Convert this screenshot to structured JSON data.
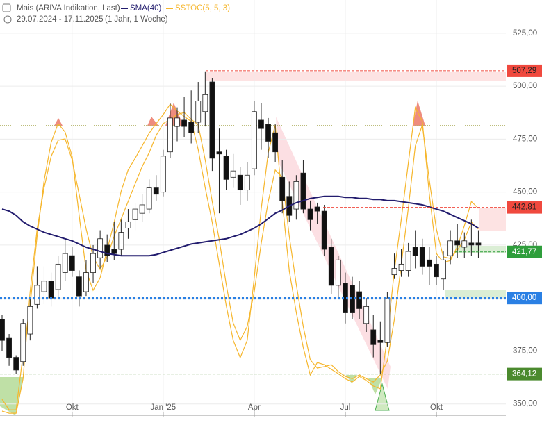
{
  "header": {
    "period": "29.07.2024 - 17.11.2025",
    "interval": "(1 Jahr, 1 Woche)"
  },
  "chart_data": {
    "type": "candlestick",
    "categories": [
      null,
      null,
      null,
      null,
      null,
      null,
      null,
      null,
      null,
      null,
      "Okt",
      null,
      null,
      null,
      null,
      null,
      null,
      null,
      null,
      null,
      null,
      null,
      null,
      "Jan '25",
      null,
      null,
      null,
      null,
      null,
      null,
      null,
      null,
      null,
      null,
      null,
      null,
      "Apr",
      null,
      null,
      null,
      null,
      null,
      null,
      null,
      null,
      null,
      null,
      null,
      null,
      "Jul",
      null,
      null,
      null,
      null,
      null,
      null,
      null,
      null,
      null,
      null,
      null,
      null,
      "Okt",
      null,
      null,
      null,
      null,
      null,
      null
    ],
    "series": [
      {
        "name": "Mais (ARIVA Indikation, Last)",
        "up_color": "#ffffff",
        "down_color": "#111111",
        "open": [
          390,
          381,
          372,
          370,
          383,
          397,
          403,
          408,
          404,
          412,
          420,
          410,
          403,
          412,
          419,
          425,
          423,
          423,
          433,
          437,
          440,
          442,
          452,
          450,
          469,
          481,
          484,
          483,
          483,
          488,
          502,
          469,
          467,
          457,
          458,
          451,
          461,
          484,
          482,
          478,
          457,
          448,
          442,
          459,
          442,
          443,
          441,
          424,
          406,
          407,
          406,
          403,
          388,
          385,
          380,
          379,
          411,
          413,
          413,
          424,
          424,
          418,
          416,
          409,
          420,
          427,
          424,
          426,
          426
        ],
        "high": [
          392,
          383,
          373,
          390,
          400,
          415,
          415,
          412,
          420,
          428,
          424,
          413,
          418,
          425,
          432,
          430,
          436,
          437,
          442,
          445,
          449,
          456,
          458,
          470,
          492,
          490,
          495,
          498,
          502,
          507,
          504,
          480,
          470,
          468,
          462,
          464,
          493,
          492,
          485,
          482,
          465,
          455,
          458,
          465,
          446,
          445,
          444,
          428,
          420,
          412,
          410,
          408,
          400,
          392,
          389,
          403,
          421,
          423,
          426,
          432,
          428,
          424,
          420,
          422,
          432,
          435,
          431,
          437,
          432
        ],
        "low": [
          375,
          368,
          364,
          368,
          380,
          395,
          397,
          396,
          400,
          408,
          410,
          396,
          401,
          407,
          414,
          417,
          418,
          420,
          428,
          432,
          436,
          440,
          446,
          448,
          466,
          474,
          476,
          473,
          478,
          481,
          460,
          440,
          451,
          452,
          444,
          446,
          458,
          470,
          466,
          464,
          440,
          436,
          437,
          440,
          432,
          435,
          420,
          402,
          400,
          388,
          390,
          390,
          384,
          372,
          364,
          377,
          409,
          410,
          410,
          414,
          411,
          406,
          406,
          404,
          416,
          419,
          419,
          420,
          419
        ],
        "close": [
          380,
          372,
          366,
          388,
          396,
          406,
          408,
          400,
          416,
          421,
          413,
          401,
          412,
          421,
          428,
          420,
          421,
          431,
          436,
          442,
          444,
          452,
          449,
          467,
          485,
          485,
          481,
          478,
          493,
          496,
          466,
          468,
          456,
          460,
          451,
          458,
          488,
          480,
          474,
          469,
          446,
          439,
          455,
          442,
          437,
          441,
          423,
          406,
          418,
          393,
          393,
          395,
          396,
          378,
          379,
          400,
          414,
          416,
          422,
          420,
          415,
          415,
          410,
          418,
          427,
          425,
          427,
          425,
          425
        ]
      },
      {
        "name": "SMA(40)",
        "color": "#221c6e",
        "values": [
          442,
          441,
          439,
          436,
          434,
          432.5,
          431,
          430,
          429,
          428,
          427,
          425.5,
          424,
          423,
          422,
          421,
          420.5,
          420,
          420,
          420,
          420,
          420,
          420.5,
          421.5,
          422.5,
          423.5,
          424.5,
          425.5,
          426,
          426.5,
          427,
          427.5,
          428,
          429,
          430,
          431.5,
          433,
          435,
          437.5,
          440,
          441.5,
          443.5,
          445,
          446,
          447,
          447.5,
          448,
          448,
          448,
          447.5,
          447.5,
          447,
          447,
          446.5,
          446.5,
          446,
          446,
          445.5,
          445,
          444.5,
          444,
          443,
          442,
          441,
          439.5,
          438,
          436.5,
          435,
          433
        ]
      },
      {
        "name": "SSTOC(5, 5, 3)",
        "color": "#f6b62c",
        "axis": "y2",
        "values": [
          4.5,
          1.1,
          1.1,
          19.1,
          34.8,
          57.3,
          75.3,
          87.6,
          93.7,
          91,
          83.1,
          64,
          46.1,
          39.8,
          43.8,
          52.8,
          61.8,
          71.9,
          78.7,
          82.5,
          86.5,
          90.6,
          93.7,
          96.6,
          100,
          97.8,
          96,
          94.4,
          85.4,
          73,
          61.8,
          48.3,
          34.8,
          23.6,
          18,
          23.6,
          43.8,
          66.3,
          84.3,
          93.3,
          68.5,
          46.1,
          32.6,
          21.3,
          12.4,
          16.4,
          15.7,
          14.2,
          12.8,
          11.2,
          10.1,
          11.9,
          10.6,
          8.8,
          7.9,
          24.7,
          46.1,
          62.9,
          80.9,
          98.9,
          94.4,
          70.8,
          51.7,
          48.8,
          49.4,
          53.9,
          60.7,
          68.5,
          66.3
        ],
        "signal": [
          0.7,
          0,
          0,
          11.2,
          39.3,
          59.6,
          73,
          83.1,
          88.3,
          88.8,
          82,
          70.8,
          59.6,
          50.6,
          46.5,
          50.6,
          57.3,
          62.9,
          68.5,
          74.2,
          79.8,
          84.3,
          89.9,
          93.7,
          95.1,
          96.6,
          97.3,
          95.1,
          93.3,
          82,
          68.5,
          56.2,
          41.6,
          29.2,
          23.6,
          28.1,
          39.3,
          55.1,
          68.5,
          78.7,
          76.4,
          57.3,
          41.6,
          28.1,
          17.3,
          14.6,
          15.1,
          15.7,
          13.5,
          11.9,
          11.2,
          12.4,
          11.2,
          10.1,
          12.4,
          16.9,
          30.3,
          48.3,
          66.3,
          86.5,
          93.3,
          75.3,
          59.6,
          50.6,
          50.1,
          52.8,
          56.2,
          61.8,
          59.6
        ]
      }
    ],
    "ylim": [
      344,
      540.7
    ],
    "yticks": [
      {
        "value": 350,
        "label": "350,00"
      },
      {
        "value": 375,
        "label": "375,00"
      },
      {
        "value": 400,
        "label": "400,00"
      },
      {
        "value": 425,
        "label": "425,00"
      },
      {
        "value": 450,
        "label": "450,00"
      },
      {
        "value": 475,
        "label": "475,00"
      },
      {
        "value": 500,
        "label": "500,00"
      },
      {
        "value": 525,
        "label": "525,00"
      }
    ],
    "y2lim": [
      -1.1,
      133.7
    ],
    "grid": true,
    "reference_line": 481.5,
    "levels": [
      {
        "value": 507.29,
        "label": "507,29",
        "color": "#f0493e"
      },
      {
        "value": 442.81,
        "label": "442,81",
        "color": "#f0493e"
      },
      {
        "value": 421.77,
        "label": "421,77",
        "color": "#2f9e3c"
      },
      {
        "value": 400,
        "label": "400,00",
        "color": "#2a80e4"
      },
      {
        "value": 364.12,
        "label": "364,12",
        "color": "#4b8a2e"
      }
    ]
  }
}
